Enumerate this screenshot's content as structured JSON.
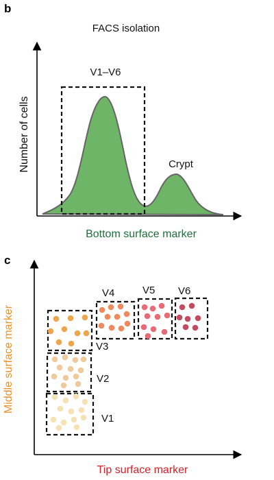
{
  "panel_b": {
    "letter": "b",
    "title": "FACS isolation",
    "ylabel": "Number of cells",
    "xlabel": "Bottom surface marker",
    "gate_label": "V1–V6",
    "peak_label": "Crypt",
    "curve_fill": "#6fb567",
    "curve_stroke": "#666666",
    "xlabel_color": "#1f6e3a"
  },
  "panel_c": {
    "letter": "c",
    "ylabel": "Middle surface marker",
    "xlabel": "Tip surface marker",
    "ylabel_color": "#e8922e",
    "xlabel_color": "#d61f26",
    "gates": [
      {
        "label": "V1",
        "color": "#f5e1b3"
      },
      {
        "label": "V2",
        "color": "#f0c99d"
      },
      {
        "label": "V3",
        "color": "#eda64e"
      },
      {
        "label": "V4",
        "color": "#ef8a5e"
      },
      {
        "label": "V5",
        "color": "#e86a74"
      },
      {
        "label": "V6",
        "color": "#c24b5e"
      }
    ]
  }
}
